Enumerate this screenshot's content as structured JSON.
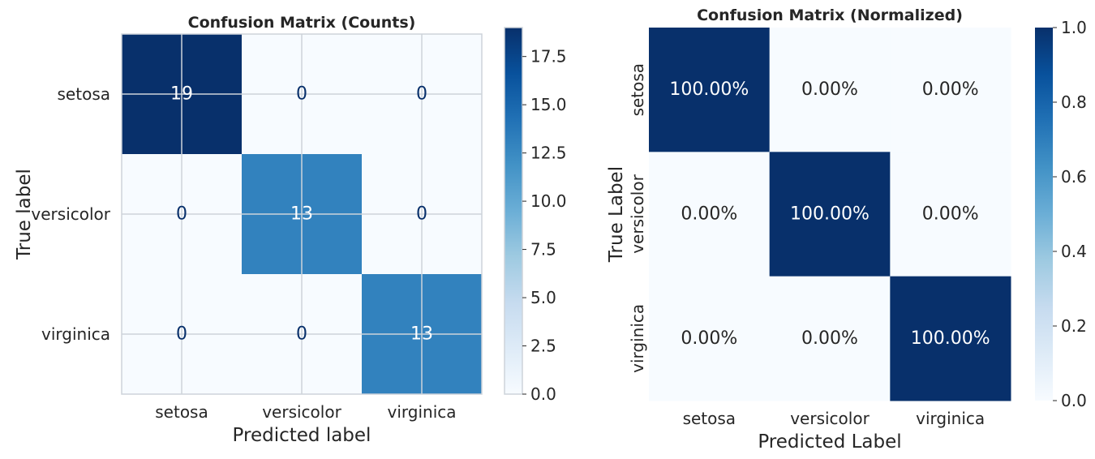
{
  "chart_data": [
    {
      "type": "heatmap",
      "title": "Confusion Matrix (Counts)",
      "xlabel": "Predicted label",
      "ylabel": "True label",
      "x_categories": [
        "setosa",
        "versicolor",
        "virginica"
      ],
      "y_categories": [
        "setosa",
        "versicolor",
        "virginica"
      ],
      "values": [
        [
          19,
          0,
          0
        ],
        [
          0,
          13,
          0
        ],
        [
          0,
          0,
          13
        ]
      ],
      "cell_labels": [
        [
          "19",
          "0",
          "0"
        ],
        [
          "0",
          "13",
          "0"
        ],
        [
          "0",
          "0",
          "13"
        ]
      ],
      "colormap": "Blues",
      "grid": true,
      "y_tick_rotation": "horizontal",
      "colorbar": {
        "range": [
          0,
          19
        ],
        "ticks": [
          0,
          2.5,
          5,
          7.5,
          10,
          12.5,
          15,
          17.5
        ],
        "tick_labels": [
          "0.0",
          "2.5",
          "5.0",
          "7.5",
          "10.0",
          "12.5",
          "15.0",
          "17.5"
        ]
      },
      "text_colors": {
        "light": "#ffffff",
        "dark": "#08306b"
      }
    },
    {
      "type": "heatmap",
      "title": "Confusion Matrix (Normalized)",
      "xlabel": "Predicted Label",
      "ylabel": "True Label",
      "x_categories": [
        "setosa",
        "versicolor",
        "virginica"
      ],
      "y_categories": [
        "setosa",
        "versicolor",
        "virginica"
      ],
      "values": [
        [
          1.0,
          0.0,
          0.0
        ],
        [
          0.0,
          1.0,
          0.0
        ],
        [
          0.0,
          0.0,
          1.0
        ]
      ],
      "cell_labels": [
        [
          "100.00%",
          "0.00%",
          "0.00%"
        ],
        [
          "0.00%",
          "100.00%",
          "0.00%"
        ],
        [
          "0.00%",
          "0.00%",
          "100.00%"
        ]
      ],
      "colormap": "Blues",
      "grid": false,
      "y_tick_rotation": "vertical",
      "colorbar": {
        "range": [
          0,
          1
        ],
        "ticks": [
          0,
          0.2,
          0.4,
          0.6,
          0.8,
          1.0
        ],
        "tick_labels": [
          "0.0",
          "0.2",
          "0.4",
          "0.6",
          "0.8",
          "1.0"
        ]
      },
      "text_colors": {
        "light": "#ffffff",
        "dark": "#262626"
      }
    }
  ]
}
